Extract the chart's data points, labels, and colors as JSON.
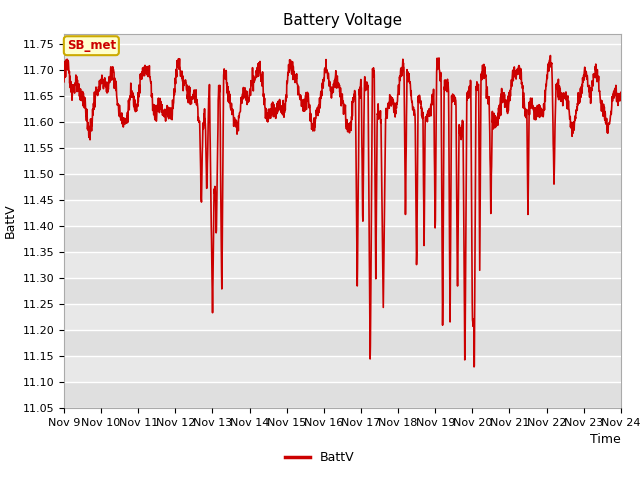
{
  "title": "Battery Voltage",
  "xlabel": "Time",
  "ylabel": "BattV",
  "ylim": [
    11.05,
    11.77
  ],
  "xlim": [
    0,
    15
  ],
  "xtick_labels": [
    "Nov 9",
    "Nov 10",
    "Nov 11",
    "Nov 12",
    "Nov 13",
    "Nov 14",
    "Nov 15",
    "Nov 16",
    "Nov 17",
    "Nov 18",
    "Nov 19",
    "Nov 20",
    "Nov 21",
    "Nov 22",
    "Nov 23",
    "Nov 24"
  ],
  "line_color": "#cc0000",
  "line_width": 1.2,
  "legend_label": "BattV",
  "annotation_text": "SB_met",
  "annotation_bg": "#ffffcc",
  "annotation_border": "#ccaa00",
  "plot_bg": "#e8e8e8",
  "fig_bg": "#ffffff",
  "title_fontsize": 11,
  "label_fontsize": 9,
  "tick_fontsize": 8
}
